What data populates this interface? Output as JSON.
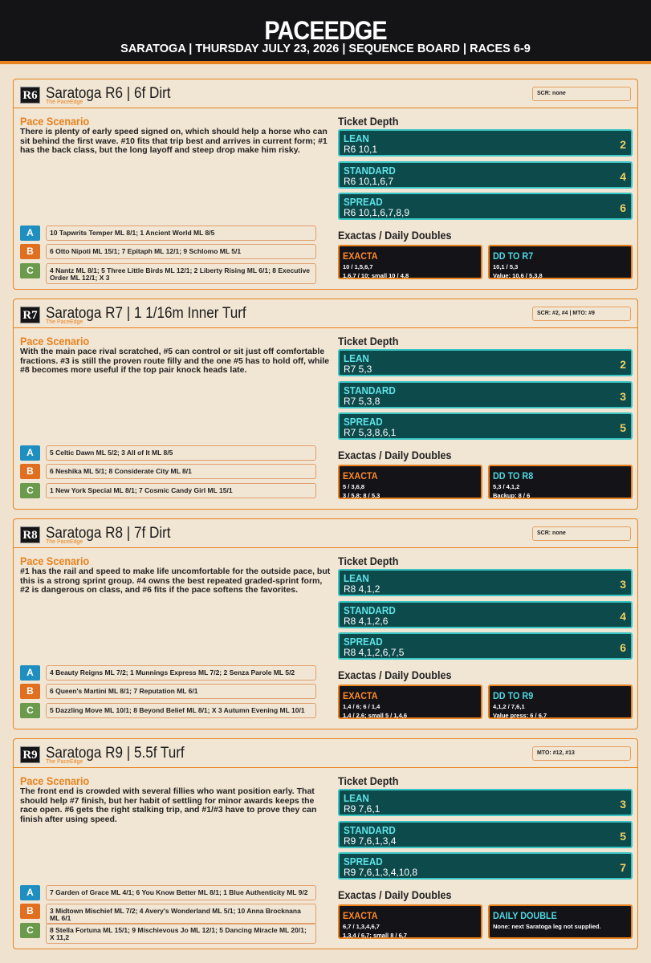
{
  "header": {
    "title": "PACEEDGE",
    "subtitle": "SARATOGA | THURSDAY JULY 23, 2026 | SEQUENCE BOARD | RACES 6-9"
  },
  "races": [
    {
      "badge": "R6",
      "title": "Saratoga R6 | 6f Dirt",
      "brand": "The PaceEdge",
      "scr": "SCR: none",
      "pace_heading": "Pace Scenario",
      "pace_text": "There is plenty of early speed signed on, which should help a horse who can sit behind the first wave. #10 fits that trip best and arrives in current form; #1 has the back class, but the long layoff and steep drop make him risky.",
      "tiers": [
        {
          "letter": "A",
          "text": "10 Tapwrits Temper ML 8/1; 1 Ancient World ML 8/5"
        },
        {
          "letter": "B",
          "text": "6 Otto Nipoti ML 15/1; 7 Epitaph ML 12/1; 9 Schlomo ML 5/1"
        },
        {
          "letter": "C",
          "text": "4 Nantz ML 8/1; 5 Three Little Birds ML 12/1; 2 Liberty Rising ML 6/1; 8 Executive Order ML 12/1; X 3"
        }
      ],
      "ticket_heading": "Ticket Depth",
      "tickets": [
        {
          "label": "LEAN",
          "combo": "R6 10,1",
          "count": 2
        },
        {
          "label": "STANDARD",
          "combo": "R6 10,1,6,7",
          "count": 4
        },
        {
          "label": "SPREAD",
          "combo": "R6 10,1,6,7,8,9",
          "count": 6
        }
      ],
      "exacta_heading": "Exactas / Daily Doubles",
      "boxes": [
        {
          "title": "EXACTA",
          "lines": [
            "10 / 1,5,6,7",
            "1,6,7 / 10; small 10 / 4,8"
          ]
        },
        {
          "title": "DD TO R7",
          "lines": [
            "10,1 / 5,3",
            "Value: 10,6 / 5,3,8"
          ]
        }
      ]
    },
    {
      "badge": "R7",
      "title": "Saratoga R7 | 1 1/16m Inner Turf",
      "brand": "The PaceEdge",
      "scr": "SCR: #2, #4 | MTO: #9",
      "pace_heading": "Pace Scenario",
      "pace_text": "With the main pace rival scratched, #5 can control or sit just off comfortable fractions. #3 is still the proven route filly and the one #5 has to hold off, while #8 becomes more useful if the top pair knock heads late.",
      "tiers": [
        {
          "letter": "A",
          "text": "5 Celtic Dawn ML 5/2; 3 All of It ML 8/5"
        },
        {
          "letter": "B",
          "text": "6 Neshika ML 5/1; 8 Considerate City ML 8/1"
        },
        {
          "letter": "C",
          "text": "1 New York Special ML 8/1; 7 Cosmic Candy Girl ML 15/1"
        }
      ],
      "ticket_heading": "Ticket Depth",
      "tickets": [
        {
          "label": "LEAN",
          "combo": "R7 5,3",
          "count": 2
        },
        {
          "label": "STANDARD",
          "combo": "R7 5,3,8",
          "count": 3
        },
        {
          "label": "SPREAD",
          "combo": "R7 5,3,8,6,1",
          "count": 5
        }
      ],
      "exacta_heading": "Exactas / Daily Doubles",
      "boxes": [
        {
          "title": "EXACTA",
          "lines": [
            "5 / 3,6,8",
            "3 / 5,8; 8 / 5,3"
          ]
        },
        {
          "title": "DD TO R8",
          "lines": [
            "5,3 / 4,1,2",
            "Backup: 8 / 6"
          ]
        }
      ]
    },
    {
      "badge": "R8",
      "title": "Saratoga R8 | 7f Dirt",
      "brand": "The PaceEdge",
      "scr": "SCR: none",
      "pace_heading": "Pace Scenario",
      "pace_text": "#1 has the rail and speed to make life uncomfortable for the outside pace, but this is a strong sprint group. #4 owns the best repeated graded-sprint form, #2 is dangerous on class, and #6 fits if the pace softens the favorites.",
      "tiers": [
        {
          "letter": "A",
          "text": "4 Beauty Reigns ML 7/2; 1 Munnings Express ML 7/2; 2 Senza Parole ML 5/2"
        },
        {
          "letter": "B",
          "text": "6 Queen's Martini ML 8/1; 7 Reputation ML 6/1"
        },
        {
          "letter": "C",
          "text": "5 Dazzling Move ML 10/1; 8 Beyond Belief ML 8/1; X 3 Autumn Evening ML 10/1"
        }
      ],
      "ticket_heading": "Ticket Depth",
      "tickets": [
        {
          "label": "LEAN",
          "combo": "R8 4,1,2",
          "count": 3
        },
        {
          "label": "STANDARD",
          "combo": "R8 4,1,2,6",
          "count": 4
        },
        {
          "label": "SPREAD",
          "combo": "R8 4,1,2,6,7,5",
          "count": 6
        }
      ],
      "exacta_heading": "Exactas / Daily Doubles",
      "boxes": [
        {
          "title": "EXACTA",
          "lines": [
            "1,4 / 6; 6 / 1,4",
            "1,4 / 2,6; small 5 / 1,4,6"
          ]
        },
        {
          "title": "DD TO R9",
          "lines": [
            "4,1,2 / 7,6,1",
            "Value press: 6 / 6,7"
          ]
        }
      ]
    },
    {
      "badge": "R9",
      "title": "Saratoga R9 | 5.5f Turf",
      "brand": "The PaceEdge",
      "scr": "MTO: #12, #13",
      "pace_heading": "Pace Scenario",
      "pace_text": "The front end is crowded with several fillies who want position early. That should help #7 finish, but her habit of settling for minor awards keeps the race open. #6 gets the right stalking trip, and #1/#3 have to prove they can finish after using speed.",
      "tiers": [
        {
          "letter": "A",
          "text": "7 Garden of Grace ML 4/1; 6 You Know Better ML 8/1; 1 Blue Authenticity ML 9/2"
        },
        {
          "letter": "B",
          "text": "3 Midtown Mischief ML 7/2; 4 Avery's Wonderland ML 5/1; 10 Anna Brocknana ML 6/1"
        },
        {
          "letter": "C",
          "text": "8 Stella Fortuna ML 15/1; 9 Mischievous Jo ML 12/1; 5 Dancing Miracle ML 20/1; X 11,2"
        }
      ],
      "ticket_heading": "Ticket Depth",
      "tickets": [
        {
          "label": "LEAN",
          "combo": "R9 7,6,1",
          "count": 3
        },
        {
          "label": "STANDARD",
          "combo": "R9 7,6,1,3,4",
          "count": 5
        },
        {
          "label": "SPREAD",
          "combo": "R9 7,6,1,3,4,10,8",
          "count": 7
        }
      ],
      "exacta_heading": "Exactas / Daily Doubles",
      "boxes": [
        {
          "title": "EXACTA",
          "lines": [
            "6,7 / 1,3,4,6,7",
            "1,3,4 / 6,7; small 8 / 6,7"
          ]
        },
        {
          "title": "DAILY DOUBLE",
          "lines": [
            "None: next Saratoga leg not supplied."
          ]
        }
      ]
    }
  ]
}
